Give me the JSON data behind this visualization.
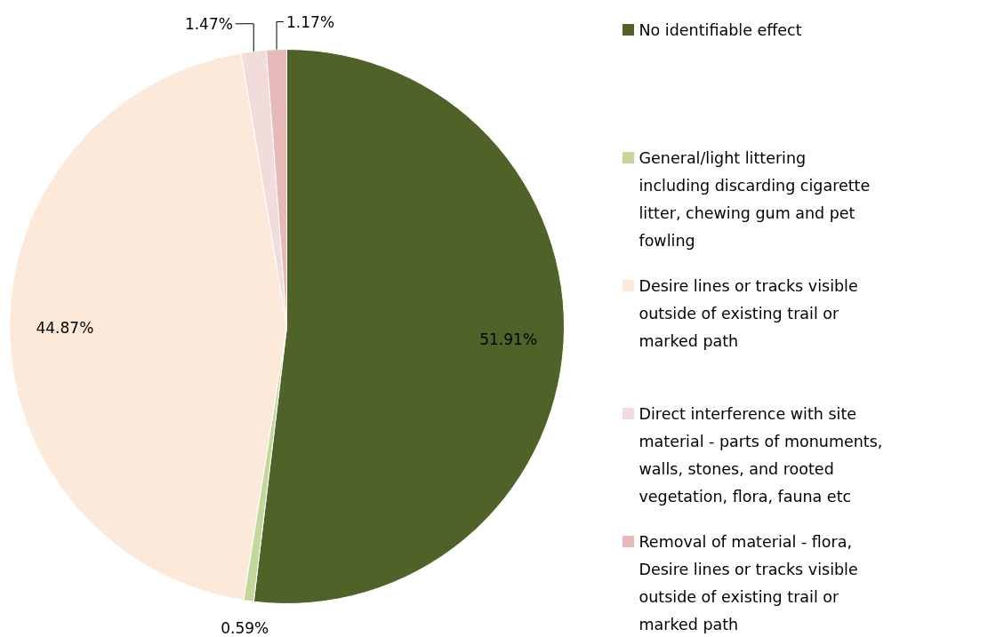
{
  "chart_data": {
    "type": "pie",
    "categories": [
      "No identifiable effect",
      "General/light littering including discarding cigarette litter, chewing gum and pet fowling",
      "Desire lines or tracks visible outside of existing trail or marked path",
      "Direct interference with site material - parts of monuments, walls, stones, and rooted vegetation, flora, fauna etc",
      "Removal of material - flora, Desire lines or tracks visible outside of existing trail or marked path"
    ],
    "values": [
      51.91,
      0.59,
      44.87,
      1.47,
      1.17
    ],
    "value_labels": [
      "51.91%",
      "0.59%",
      "44.87%",
      "1.47%",
      "1.17%"
    ],
    "colors": [
      "#4f6228",
      "#c3d69b",
      "#fde9d9",
      "#f2dcdb",
      "#e6b9b8"
    ],
    "legend": "right"
  }
}
